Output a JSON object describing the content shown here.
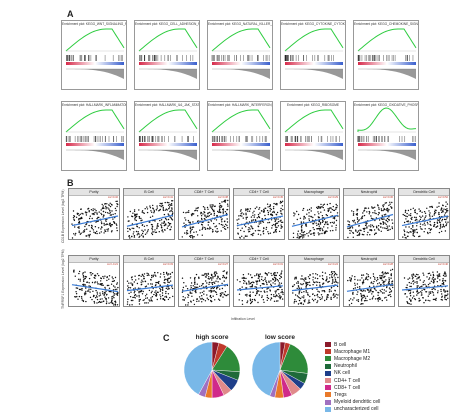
{
  "panels": {
    "a": "A",
    "b": "B",
    "c": "C"
  },
  "gsea": {
    "titles": [
      "Enrichment plot: KEGG_WNT_SIGNALING_PATHWAY",
      "Enrichment plot: KEGG_CELL_ADHESION_MOLECULES_CAMS",
      "Enrichment plot: KEGG_NATURAL_KILLER_CELL_MEDIATED_CYTOTOXICITY",
      "Enrichment plot: KEGG_CYTOKINE_CYTOKINE_RECEPTOR_INTERACTION",
      "Enrichment plot: KEGG_CHEMOKINE_SIGNALING_PATHWAY",
      "Enrichment plot: HALLMARK_INFLAMMATORY_RESPONSE",
      "Enrichment plot: HALLMARK_IL6_JAK_STAT3_SIGNALING",
      "Enrichment plot: HALLMARK_INTERFERON_GAMMA_RESPONSE",
      "Enrichment plot: KEGG_RIBOSOME",
      "Enrichment plot: KEGG_OXIDATIVE_PHOSPHORYLATION"
    ]
  },
  "scatter": {
    "cells": [
      "Purity",
      "B Cell",
      "CD8+ T Cell",
      "CD4+ T Cell",
      "Macrophage",
      "Neutrophil",
      "Dendritic Cell"
    ],
    "row1_ylabel": "CD1B Expression Level (log2 TPM)",
    "row2_ylabel": "TNFRSF1 Expression Level (log2 TPM)",
    "xlabel": "Infiltration Level",
    "stats_row1": [
      "cor=0.32",
      "cor=0.41",
      "cor=0.38",
      "cor=0.45",
      "cor=0.29",
      "cor=0.36",
      "cor=0.52"
    ],
    "stats_row2": [
      "cor=-0.21",
      "cor=0.33",
      "cor=0.27",
      "cor=0.31",
      "cor=0.24",
      "cor=0.28",
      "cor=0.40"
    ]
  },
  "pies": {
    "left_title": "high score",
    "right_title": "low score"
  },
  "chart_data": [
    {
      "type": "pie",
      "title": "high score",
      "labels": [
        "B cell",
        "Macrophage M1",
        "Macrophage M2",
        "Neutrophil",
        "NK cell",
        "CD4+ T cell",
        "CD8+ T cell",
        "Tregs",
        "Myeloid dendritic cell",
        "uncharacterized cell"
      ],
      "values": [
        0.04,
        0.05,
        0.17,
        0.05,
        0.07,
        0.05,
        0.07,
        0.04,
        0.04,
        0.42
      ]
    },
    {
      "type": "pie",
      "title": "low score",
      "labels": [
        "B cell",
        "Macrophage M1",
        "Macrophage M2",
        "Neutrophil",
        "NK cell",
        "CD4+ T cell",
        "CD8+ T cell",
        "Tregs",
        "Myeloid dendritic cell",
        "uncharacterized cell"
      ],
      "values": [
        0.03,
        0.03,
        0.21,
        0.06,
        0.04,
        0.06,
        0.05,
        0.05,
        0.03,
        0.44
      ]
    }
  ],
  "legend": [
    {
      "label": "B cell",
      "color": "#8b1a2b"
    },
    {
      "label": "Macrophage M1",
      "color": "#c0392b"
    },
    {
      "label": "Macrophage M2",
      "color": "#2e8b3a"
    },
    {
      "label": "Neutrophil",
      "color": "#1f6a3a"
    },
    {
      "label": "NK cell",
      "color": "#1f3f8a"
    },
    {
      "label": "CD4+ T cell",
      "color": "#e08a8a"
    },
    {
      "label": "CD8+ T cell",
      "color": "#d02a8a"
    },
    {
      "label": "Tregs",
      "color": "#e97a2a"
    },
    {
      "label": "Myeloid dendritic cell",
      "color": "#a070c0"
    },
    {
      "label": "uncharacterized cell",
      "color": "#79b8e8"
    }
  ]
}
